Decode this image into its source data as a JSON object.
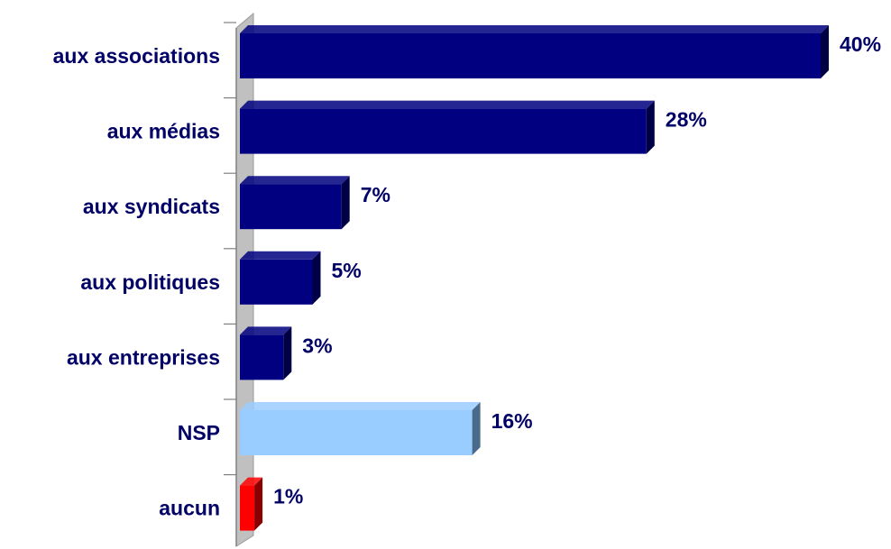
{
  "chart_data": {
    "type": "bar",
    "orientation": "horizontal",
    "categories": [
      "aux associations",
      "aux médias",
      "aux syndicats",
      "aux politiques",
      "aux entreprises",
      "NSP",
      "aucun"
    ],
    "values": [
      40,
      28,
      7,
      5,
      3,
      16,
      1
    ],
    "value_labels": [
      "40%",
      "28%",
      "7%",
      "5%",
      "3%",
      "16%",
      "1%"
    ],
    "bar_colors": [
      "#000080",
      "#000080",
      "#000080",
      "#000080",
      "#000080",
      "#99ccff",
      "#ff0000"
    ],
    "side_colors": [
      "#000044",
      "#000044",
      "#000044",
      "#000044",
      "#000044",
      "#4a6a8c",
      "#880000"
    ],
    "label_color": "#000066",
    "axis_color": "#bfbfbf",
    "xlim": [
      0,
      40
    ],
    "title": "",
    "xlabel": "",
    "ylabel": "",
    "grid": false,
    "legend": "none",
    "three_d": true
  }
}
